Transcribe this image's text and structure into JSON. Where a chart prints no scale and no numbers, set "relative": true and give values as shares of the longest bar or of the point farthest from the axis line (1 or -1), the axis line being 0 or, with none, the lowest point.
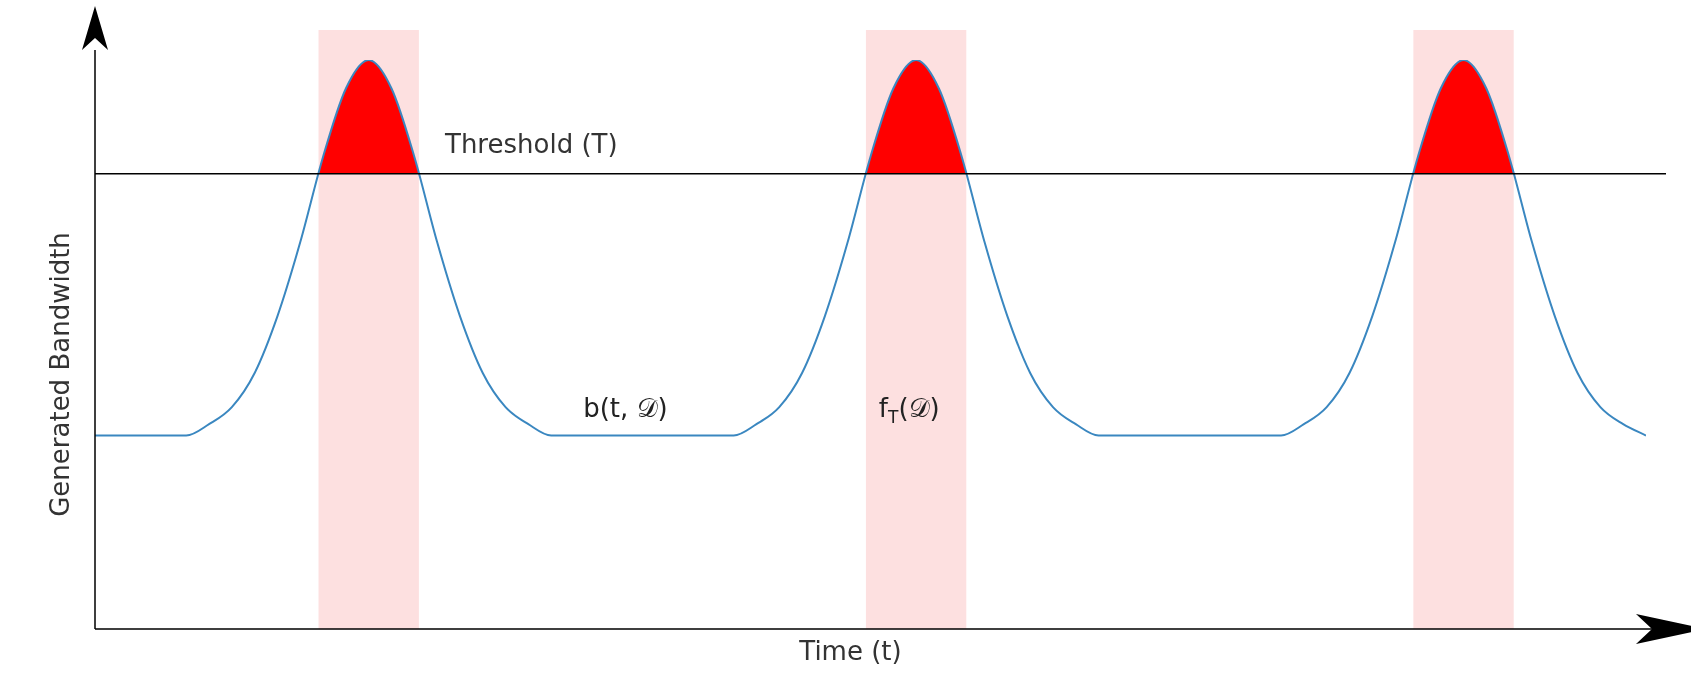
{
  "chart_data": {
    "type": "line",
    "relative": true,
    "xlabel": "Time (t)",
    "ylabel": "Generated Bandwidth",
    "categories": [
      null,
      null,
      null,
      null,
      null,
      null,
      null,
      null,
      null,
      null,
      null,
      null,
      null,
      null,
      null,
      null,
      null,
      null,
      null,
      null,
      null,
      null,
      null,
      null,
      null,
      null,
      null,
      null,
      null,
      null,
      null,
      null,
      null,
      null,
      null,
      null,
      null,
      null,
      null,
      null,
      null,
      null,
      null,
      null,
      null,
      null,
      null,
      null,
      null,
      null,
      null,
      null,
      null,
      null,
      null,
      null,
      null,
      null,
      null,
      null,
      null,
      null,
      null,
      null,
      null,
      null,
      null,
      null,
      null
    ],
    "series": [
      {
        "color": "#3a87c0",
        "values": [
          0.34,
          0.34,
          0.34,
          0.34,
          0.34,
          0.36,
          0.39,
          0.45,
          0.55,
          0.68,
          0.83,
          0.95,
          1,
          0.95,
          0.83,
          0.68,
          0.55,
          0.45,
          0.39,
          0.36,
          0.34,
          0.34,
          0.34,
          0.34,
          0.34,
          0.34,
          0.34,
          0.34,
          0.34,
          0.36,
          0.39,
          0.45,
          0.55,
          0.68,
          0.83,
          0.95,
          1,
          0.95,
          0.83,
          0.68,
          0.55,
          0.45,
          0.39,
          0.36,
          0.34,
          0.34,
          0.34,
          0.34,
          0.34,
          0.34,
          0.34,
          0.34,
          0.34,
          0.36,
          0.39,
          0.45,
          0.55,
          0.68,
          0.83,
          0.95,
          1,
          0.95,
          0.83,
          0.68,
          0.55,
          0.45,
          0.39,
          0.36,
          0.34
        ]
      }
    ],
    "ref_lines": [
      {
        "axis": "y",
        "value": 0.8,
        "label": "Threshold (T)",
        "color": "#000000"
      }
    ],
    "annotations": [
      "b(t, 𝒟)",
      "f$_{T}$(𝒟)"
    ],
    "marker": "none",
    "line_style": "solid"
  }
}
